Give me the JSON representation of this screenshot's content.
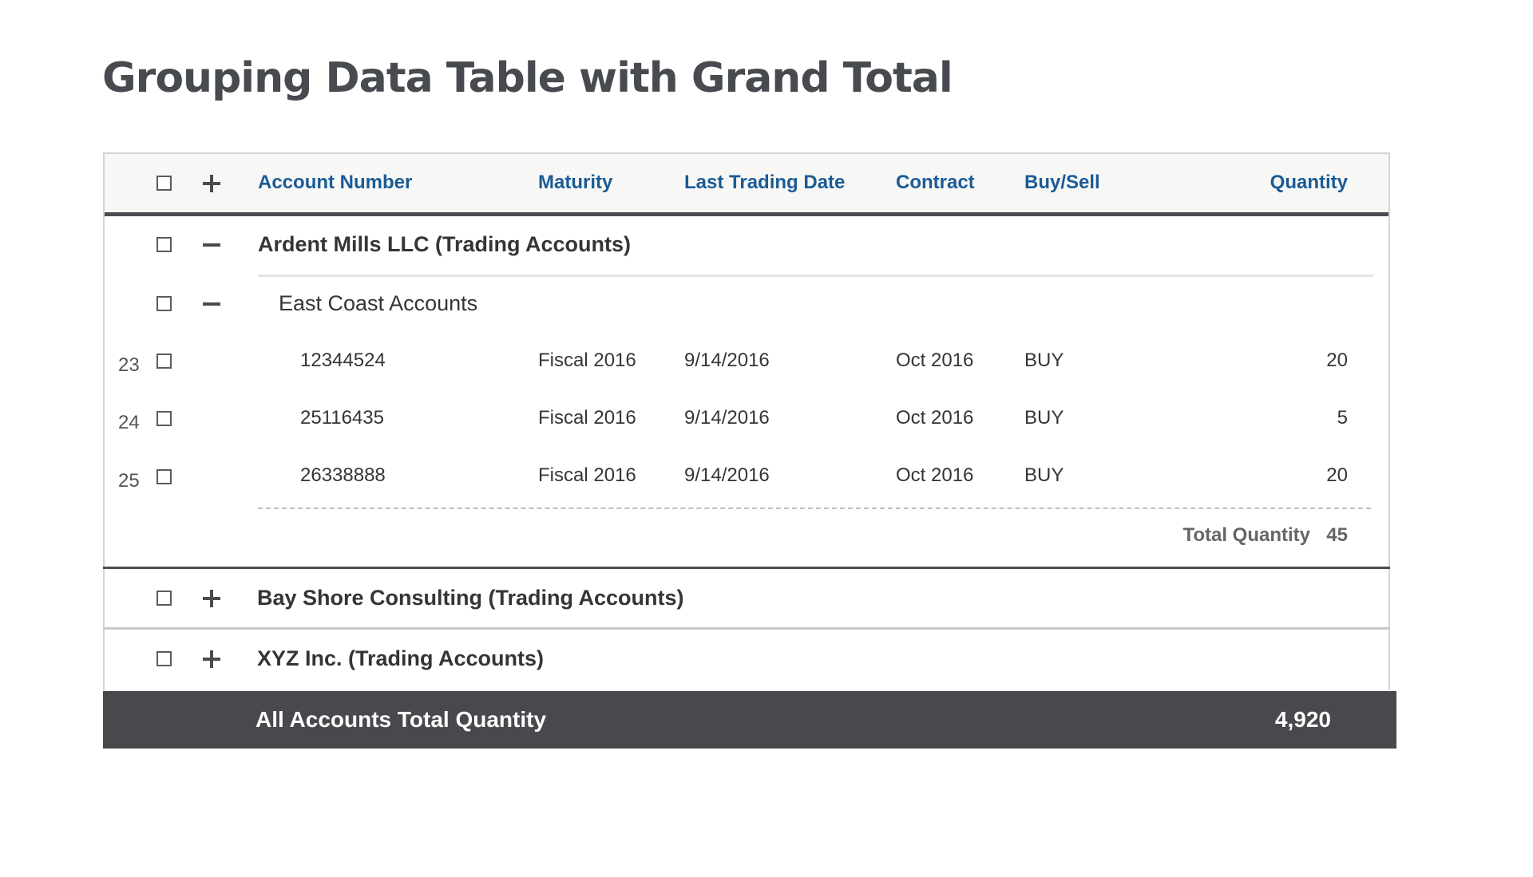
{
  "page": {
    "title": "Grouping Data Table with Grand Total"
  },
  "table": {
    "columns": [
      {
        "key": "account_number",
        "label": "Account Number"
      },
      {
        "key": "maturity",
        "label": "Maturity"
      },
      {
        "key": "last_trading_date",
        "label": "Last Trading Date"
      },
      {
        "key": "contract",
        "label": "Contract"
      },
      {
        "key": "buy_sell",
        "label": "Buy/Sell"
      },
      {
        "key": "quantity",
        "label": "Quantity"
      }
    ],
    "groups": [
      {
        "label": "Ardent Mills LLC (Trading Accounts)",
        "expanded": true,
        "subgroup": {
          "label": "East Coast Accounts",
          "expanded": true,
          "rows": [
            {
              "num": "23",
              "account_number": "12344524",
              "maturity": "Fiscal 2016",
              "last_trading_date": "9/14/2016",
              "contract": "Oct 2016",
              "buy_sell": "BUY",
              "quantity": "20"
            },
            {
              "num": "24",
              "account_number": "25116435",
              "maturity": "Fiscal 2016",
              "last_trading_date": "9/14/2016",
              "contract": "Oct 2016",
              "buy_sell": "BUY",
              "quantity": "5"
            },
            {
              "num": "25",
              "account_number": "26338888",
              "maturity": "Fiscal 2016",
              "last_trading_date": "9/14/2016",
              "contract": "Oct 2016",
              "buy_sell": "BUY",
              "quantity": "20"
            }
          ],
          "total_label": "Total Quantity",
          "total_value": "45"
        }
      },
      {
        "label": "Bay Shore Consulting (Trading Accounts)",
        "expanded": false
      },
      {
        "label": "XYZ Inc. (Trading Accounts)",
        "expanded": false
      }
    ],
    "grand_total": {
      "label": "All Accounts Total Quantity",
      "value": "4,920"
    }
  },
  "icons": {
    "expand": "plus-icon",
    "collapse": "minus-icon",
    "checkbox": "checkbox-icon"
  },
  "colors": {
    "header_text": "#1a5b96",
    "footer_bg": "#48494d",
    "divider": "#4b4d52"
  }
}
